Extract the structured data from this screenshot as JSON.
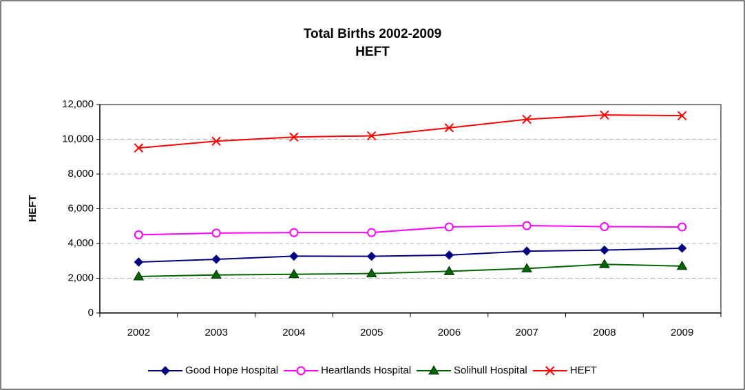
{
  "chart_data": {
    "type": "line",
    "title": "Total Births 2002-2009",
    "subtitle": "HEFT",
    "ylabel": "HEFT",
    "categories": [
      "2002",
      "2003",
      "2004",
      "2005",
      "2006",
      "2007",
      "2008",
      "2009"
    ],
    "series": [
      {
        "name": "Good Hope Hospital",
        "color": "#000080",
        "marker": "diamond",
        "values": [
          2930,
          3090,
          3270,
          3260,
          3330,
          3560,
          3620,
          3730
        ]
      },
      {
        "name": "Heartlands Hospital",
        "color": "#ff00ff",
        "marker": "circle-open",
        "values": [
          4500,
          4600,
          4630,
          4630,
          4950,
          5030,
          4970,
          4950
        ]
      },
      {
        "name": "Solihull Hospital",
        "color": "#006400",
        "marker": "triangle",
        "values": [
          2100,
          2190,
          2230,
          2270,
          2400,
          2560,
          2800,
          2700
        ]
      },
      {
        "name": "HEFT",
        "color": "#ff0000",
        "marker": "x",
        "values": [
          9500,
          9890,
          10130,
          10200,
          10660,
          11150,
          11400,
          11360
        ]
      }
    ],
    "ylim": [
      0,
      12000
    ],
    "yticks": [
      0,
      {
        "value": 2000,
        "label": "2,000"
      },
      {
        "value": 4000,
        "label": "4,000"
      },
      {
        "value": 6000,
        "label": "6,000"
      },
      {
        "value": 8000,
        "label": "8,000"
      },
      {
        "value": 10000,
        "label": "10,000"
      },
      {
        "value": 12000,
        "label": "12,000"
      }
    ],
    "grid": true,
    "legend": "bottom"
  }
}
